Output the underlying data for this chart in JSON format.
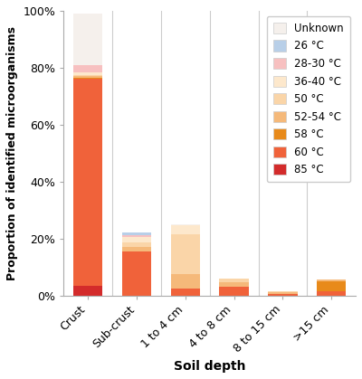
{
  "categories": [
    "Crust",
    "Sub-crust",
    "1 to 4 cm",
    "4 to 8 cm",
    "8 to 15 cm",
    ">15 cm"
  ],
  "series": [
    {
      "label": "85 °C",
      "color": "#d32b2b",
      "values": [
        3.5,
        0.0,
        0.0,
        0.0,
        0.0,
        0.0
      ]
    },
    {
      "label": "60 °C",
      "color": "#f0623a",
      "values": [
        72.5,
        15.5,
        2.5,
        3.0,
        0.5,
        1.5
      ]
    },
    {
      "label": "58 °C",
      "color": "#e88a1a",
      "values": [
        0.5,
        0.0,
        0.0,
        0.0,
        0.0,
        3.5
      ]
    },
    {
      "label": "52-54 °C",
      "color": "#f5b97a",
      "values": [
        0.5,
        1.5,
        5.0,
        1.5,
        0.5,
        0.5
      ]
    },
    {
      "label": "50 °C",
      "color": "#fad5a8",
      "values": [
        0.5,
        1.5,
        14.0,
        1.5,
        0.5,
        0.0
      ]
    },
    {
      "label": "36-40 °C",
      "color": "#fde8cc",
      "values": [
        1.0,
        2.0,
        3.0,
        0.0,
        0.0,
        0.0
      ]
    },
    {
      "label": "28-30 °C",
      "color": "#f7c0c0",
      "values": [
        2.5,
        0.5,
        0.0,
        0.0,
        0.0,
        0.0
      ]
    },
    {
      "label": "26 °C",
      "color": "#b8cfe8",
      "values": [
        0.0,
        1.0,
        0.0,
        0.0,
        0.0,
        0.0
      ]
    },
    {
      "label": "Unknown",
      "color": "#f5f0ec",
      "values": [
        18.0,
        0.0,
        0.5,
        0.0,
        0.0,
        0.0
      ]
    }
  ],
  "xlabel": "Soil depth",
  "ylabel": "Proportion of identified microorganisms",
  "ylim": [
    0,
    100
  ],
  "yticks": [
    0,
    20,
    40,
    60,
    80,
    100
  ],
  "ytick_labels": [
    "0%",
    "20%",
    "40%",
    "60%",
    "80%",
    "100%"
  ],
  "bar_width": 0.6,
  "figsize": [
    4.0,
    4.19
  ],
  "dpi": 100
}
